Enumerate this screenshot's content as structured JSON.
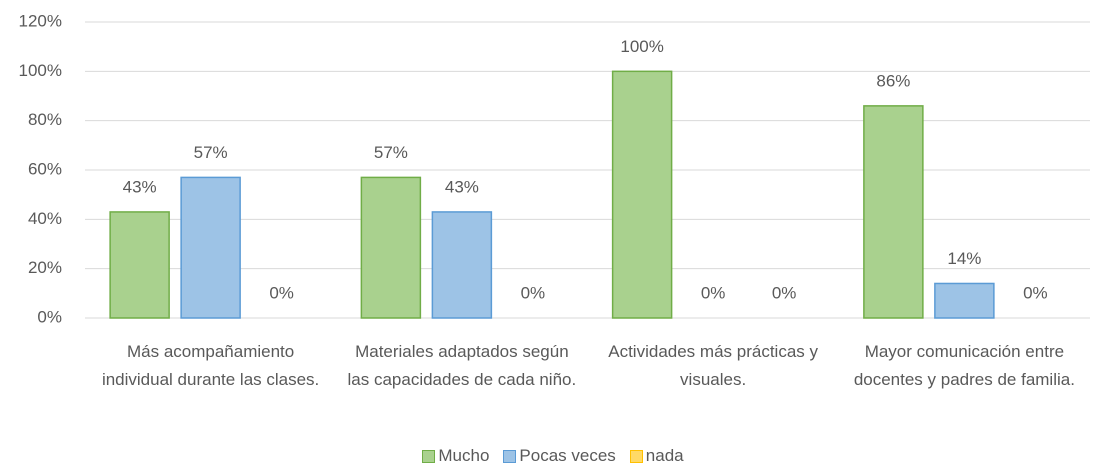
{
  "chart_data": {
    "type": "bar",
    "categories": [
      "Más acompañamiento individual durante las clases.",
      "Materiales adaptados según las capacidades de cada niño.",
      "Actividades más prácticas y visuales.",
      "Mayor comunicación entre docentes y padres de familia."
    ],
    "series": [
      {
        "name": "Mucho",
        "color": "#a9d18e",
        "values": [
          43,
          57,
          100,
          86
        ],
        "value_labels": [
          "43%",
          "57%",
          "100%",
          "86%"
        ]
      },
      {
        "name": "Pocas veces",
        "color": "#9dc3e6",
        "values": [
          57,
          43,
          0,
          14
        ],
        "value_labels": [
          "57%",
          "43%",
          "0%",
          "14%"
        ]
      },
      {
        "name": "nada",
        "color": "#ffd966",
        "values": [
          0,
          0,
          0,
          0
        ],
        "value_labels": [
          "0%",
          "0%",
          "0%",
          "0%"
        ]
      }
    ],
    "ylim": [
      0,
      120
    ],
    "yticks": [
      {
        "value": 0,
        "label": "0%"
      },
      {
        "value": 20,
        "label": "20%"
      },
      {
        "value": 40,
        "label": "40%"
      },
      {
        "value": 60,
        "label": "60%"
      },
      {
        "value": 80,
        "label": "80%"
      },
      {
        "value": 100,
        "label": "100%"
      },
      {
        "value": 120,
        "label": "120%"
      }
    ],
    "grid": true,
    "legend": "bottom"
  }
}
